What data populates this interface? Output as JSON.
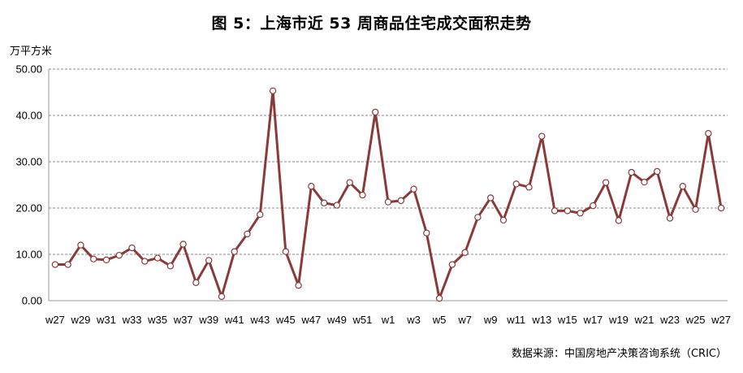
{
  "chart_data": {
    "type": "line",
    "title": "图 5：上海市近 53 周商品住宅成交面积走势",
    "ylabel": "万平方米",
    "source": "数据来源：中国房地产决策咨询系统（CRIC）",
    "ylim": [
      0,
      50
    ],
    "yticks": [
      "0.00",
      "10.00",
      "20.00",
      "30.00",
      "40.00",
      "50.00"
    ],
    "grid": true,
    "x": [
      "w27",
      "w28",
      "w29",
      "w30",
      "w31",
      "w32",
      "w33",
      "w34",
      "w35",
      "w36",
      "w37",
      "w38",
      "w39",
      "w40",
      "w41",
      "w42",
      "w43",
      "w44",
      "w45",
      "w46",
      "w47",
      "w48",
      "w49",
      "w50",
      "w51",
      "w52",
      "w1",
      "w2",
      "w3",
      "w4",
      "w5",
      "w6",
      "w7",
      "w8",
      "w9",
      "w10",
      "w11",
      "w12",
      "w13",
      "w14",
      "w15",
      "w16",
      "w17",
      "w18",
      "w19",
      "w20",
      "w21",
      "w22",
      "w23",
      "w24",
      "w25",
      "w26",
      "w27"
    ],
    "xtick_labels": [
      "w27",
      "w29",
      "w31",
      "w33",
      "w35",
      "w37",
      "w39",
      "w41",
      "w43",
      "w45",
      "w47",
      "w49",
      "w51",
      "w1",
      "w3",
      "w5",
      "w7",
      "w9",
      "w11",
      "w13",
      "w15",
      "w17",
      "w19",
      "w21",
      "w23",
      "w25",
      "w27"
    ],
    "series": [
      {
        "name": "",
        "color": "#8B3A3A",
        "values": [
          7.8,
          7.8,
          12.0,
          9.0,
          8.8,
          9.8,
          11.4,
          8.5,
          9.2,
          7.5,
          12.2,
          3.9,
          8.7,
          0.9,
          10.6,
          14.4,
          18.6,
          45.3,
          10.6,
          3.3,
          24.7,
          21.1,
          20.6,
          25.5,
          22.8,
          40.7,
          21.3,
          21.6,
          24.1,
          14.6,
          0.5,
          7.8,
          10.4,
          18.0,
          22.2,
          17.4,
          25.2,
          24.5,
          35.5,
          19.4,
          19.4,
          18.9,
          20.5,
          25.5,
          17.3,
          27.7,
          25.6,
          27.9,
          17.8,
          24.7,
          19.7,
          36.1,
          20.0
        ]
      }
    ]
  }
}
